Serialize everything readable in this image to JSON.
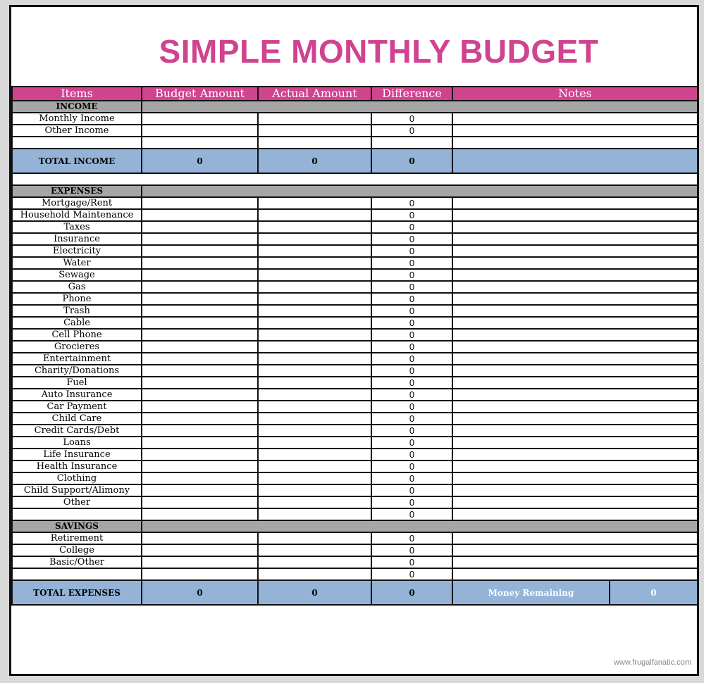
{
  "title": "SIMPLE MONTHLY BUDGET",
  "columns": [
    "Items",
    "Budget Amount",
    "Actual Amount",
    "Difference",
    "Notes"
  ],
  "colors": {
    "accent_pink": "#d0438f",
    "total_blue": "#95b3d7",
    "section_gray": "#a6a6a6"
  },
  "income": {
    "label": "INCOME",
    "items": [
      "Monthly Income",
      "Other Income",
      ""
    ],
    "differences": [
      "0",
      "0",
      ""
    ],
    "total": {
      "label": "TOTAL INCOME",
      "budget": "0",
      "actual": "0",
      "difference": "0"
    }
  },
  "expenses": {
    "label": "EXPENSES",
    "items": [
      "Mortgage/Rent",
      "Household Maintenance",
      "Taxes",
      "Insurance",
      "Electricity",
      "Water",
      "Sewage",
      "Gas",
      "Phone",
      "Trash",
      "Cable",
      "Cell Phone",
      "Grocieres",
      "Entertainment",
      "Charity/Donations",
      "Fuel",
      "Auto Insurance",
      "Car Payment",
      "Child Care",
      "Credit Cards/Debt",
      "Loans",
      "Life Insurance",
      "Health Insurance",
      "Clothing",
      "Child Support/Alimony",
      "Other",
      ""
    ],
    "difference": "0"
  },
  "savings": {
    "label": "SAVINGS",
    "items": [
      "Retirement",
      "College",
      "Basic/Other",
      ""
    ],
    "difference": "0"
  },
  "total_expenses": {
    "label": "TOTAL EXPENSES",
    "budget": "0",
    "actual": "0",
    "difference": "0",
    "money_remaining_label": "Money Remaining",
    "money_remaining": "0"
  },
  "footer": "www.frugalfanatic.com"
}
